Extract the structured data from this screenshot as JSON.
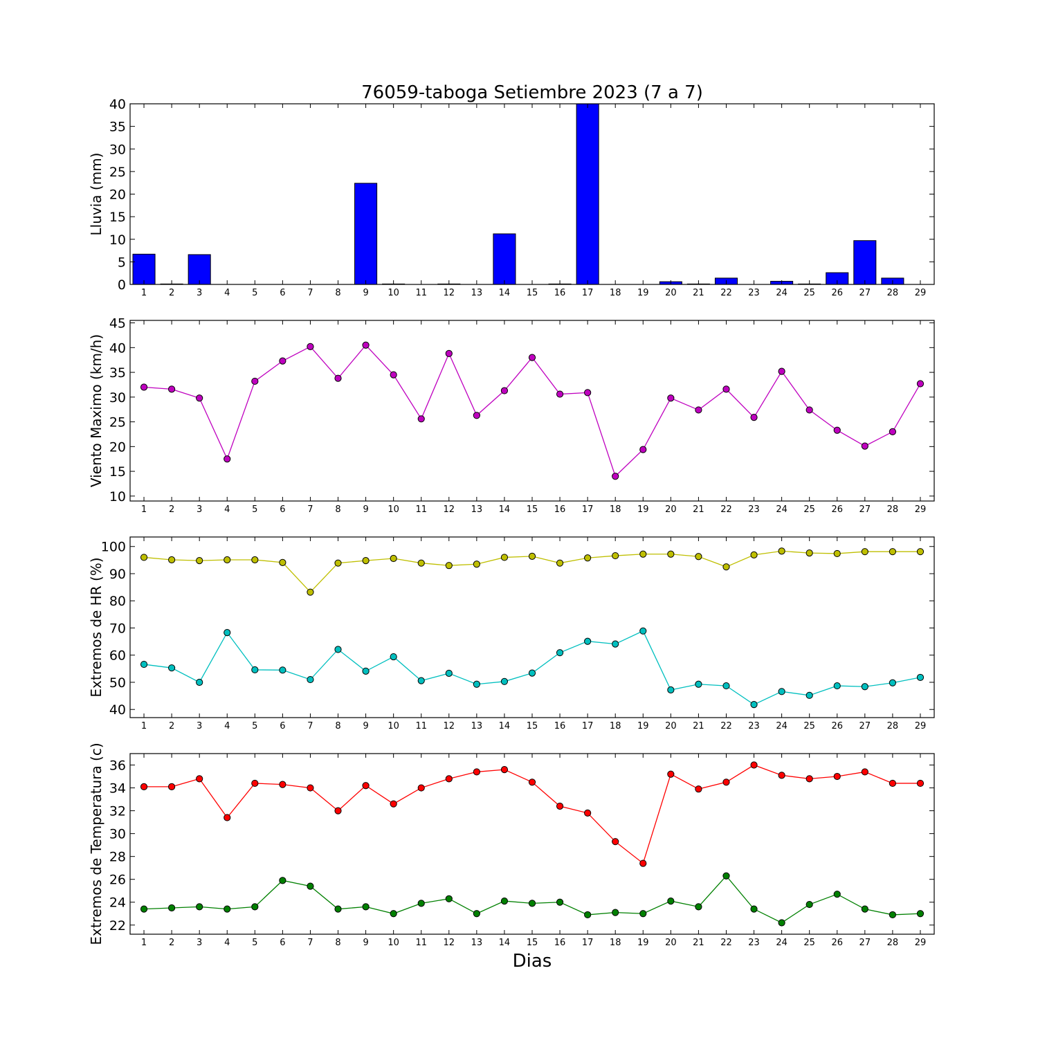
{
  "page": {
    "title": "76059-taboga Setiembre 2023  (7 a 7)",
    "xlabel": "Dias"
  },
  "colors": {
    "rain": "#0000ff",
    "wind": "#bf00bf",
    "hr_max": "#bfbf00",
    "hr_min": "#00bfbf",
    "temp_max": "#ff0000",
    "temp_min": "#008000"
  },
  "chart_data": [
    {
      "type": "bar",
      "ylabel": "Lluvia (mm)",
      "ylim": [
        0,
        40
      ],
      "yticks": [
        0,
        5,
        10,
        15,
        20,
        25,
        30,
        35,
        40
      ],
      "categories": [
        "1",
        "2",
        "3",
        "4",
        "5",
        "6",
        "7",
        "8",
        "9",
        "10",
        "11",
        "12",
        "13",
        "14",
        "15",
        "16",
        "17",
        "18",
        "19",
        "20",
        "21",
        "22",
        "23",
        "24",
        "25",
        "26",
        "27",
        "28",
        "29"
      ],
      "values": [
        6.7,
        0.1,
        6.6,
        0,
        0,
        0,
        0,
        0,
        22.4,
        0.1,
        0,
        0.1,
        0,
        11.2,
        0,
        0.1,
        40,
        0,
        0,
        0.6,
        0.1,
        1.4,
        0,
        0.7,
        0.1,
        2.6,
        9.7,
        1.4,
        0
      ],
      "grid": false
    },
    {
      "type": "line",
      "ylabel": "Viento Maximo (km/h)",
      "ylim": [
        9,
        45.5
      ],
      "yticks": [
        10,
        15,
        20,
        25,
        30,
        35,
        40,
        45
      ],
      "x": [
        1,
        2,
        3,
        4,
        5,
        6,
        7,
        8,
        9,
        10,
        11,
        12,
        13,
        14,
        15,
        16,
        17,
        18,
        19,
        20,
        21,
        22,
        23,
        24,
        25,
        26,
        27,
        28,
        29
      ],
      "series": [
        {
          "color": "#bf00bf",
          "values": [
            32.0,
            31.6,
            29.8,
            17.5,
            33.2,
            37.3,
            40.2,
            33.8,
            40.5,
            34.5,
            25.6,
            38.8,
            26.3,
            31.3,
            38.0,
            30.6,
            30.9,
            14.0,
            19.4,
            29.8,
            27.4,
            31.6,
            25.9,
            35.2,
            27.4,
            23.3,
            20.1,
            23.0,
            32.7
          ]
        }
      ],
      "grid": false
    },
    {
      "type": "line",
      "ylabel": "Extremos de HR (%)",
      "ylim": [
        37,
        103.5
      ],
      "yticks": [
        40,
        50,
        60,
        70,
        80,
        90,
        100
      ],
      "x": [
        1,
        2,
        3,
        4,
        5,
        6,
        7,
        8,
        9,
        10,
        11,
        12,
        13,
        14,
        15,
        16,
        17,
        18,
        19,
        20,
        21,
        22,
        23,
        24,
        25,
        26,
        27,
        28,
        29
      ],
      "series": [
        {
          "color": "#bfbf00",
          "values": [
            96.0,
            95.1,
            94.8,
            95.1,
            95.1,
            94.1,
            83.2,
            93.9,
            94.8,
            95.6,
            93.9,
            93.0,
            93.5,
            96.0,
            96.4,
            93.9,
            95.8,
            96.6,
            97.2,
            97.2,
            96.3,
            92.5,
            96.9,
            98.3,
            97.6,
            97.4,
            98.1,
            98.1,
            98.1
          ]
        },
        {
          "color": "#00bfbf",
          "values": [
            56.6,
            55.3,
            50.0,
            68.3,
            54.6,
            54.5,
            51.0,
            62.1,
            54.1,
            59.4,
            50.6,
            53.3,
            49.3,
            50.3,
            53.4,
            60.9,
            65.1,
            64.1,
            68.9,
            47.2,
            49.3,
            48.7,
            41.8,
            46.6,
            45.2,
            48.7,
            48.4,
            49.8,
            51.8
          ]
        }
      ],
      "grid": false
    },
    {
      "type": "line",
      "ylabel": "Extremos de Temperatura (c)",
      "ylim": [
        21.2,
        37
      ],
      "yticks": [
        22,
        24,
        26,
        28,
        30,
        32,
        34,
        36
      ],
      "x": [
        1,
        2,
        3,
        4,
        5,
        6,
        7,
        8,
        9,
        10,
        11,
        12,
        13,
        14,
        15,
        16,
        17,
        18,
        19,
        20,
        21,
        22,
        23,
        24,
        25,
        26,
        27,
        28,
        29
      ],
      "series": [
        {
          "color": "#ff0000",
          "values": [
            34.1,
            34.1,
            34.8,
            31.4,
            34.4,
            34.3,
            34.0,
            32.0,
            34.2,
            32.6,
            34.0,
            34.8,
            35.4,
            35.6,
            34.5,
            32.4,
            31.8,
            29.3,
            27.4,
            35.2,
            33.9,
            34.5,
            36.0,
            35.1,
            34.8,
            35.0,
            35.4,
            34.4,
            34.4
          ]
        },
        {
          "color": "#008000",
          "values": [
            23.4,
            23.5,
            23.6,
            23.4,
            23.6,
            25.9,
            25.4,
            23.4,
            23.6,
            23.0,
            23.9,
            24.3,
            23.0,
            24.1,
            23.9,
            24.0,
            22.9,
            23.1,
            23.0,
            24.1,
            23.6,
            26.3,
            23.4,
            22.2,
            23.8,
            24.7,
            23.4,
            22.9,
            23.0
          ]
        }
      ],
      "grid": false
    }
  ]
}
